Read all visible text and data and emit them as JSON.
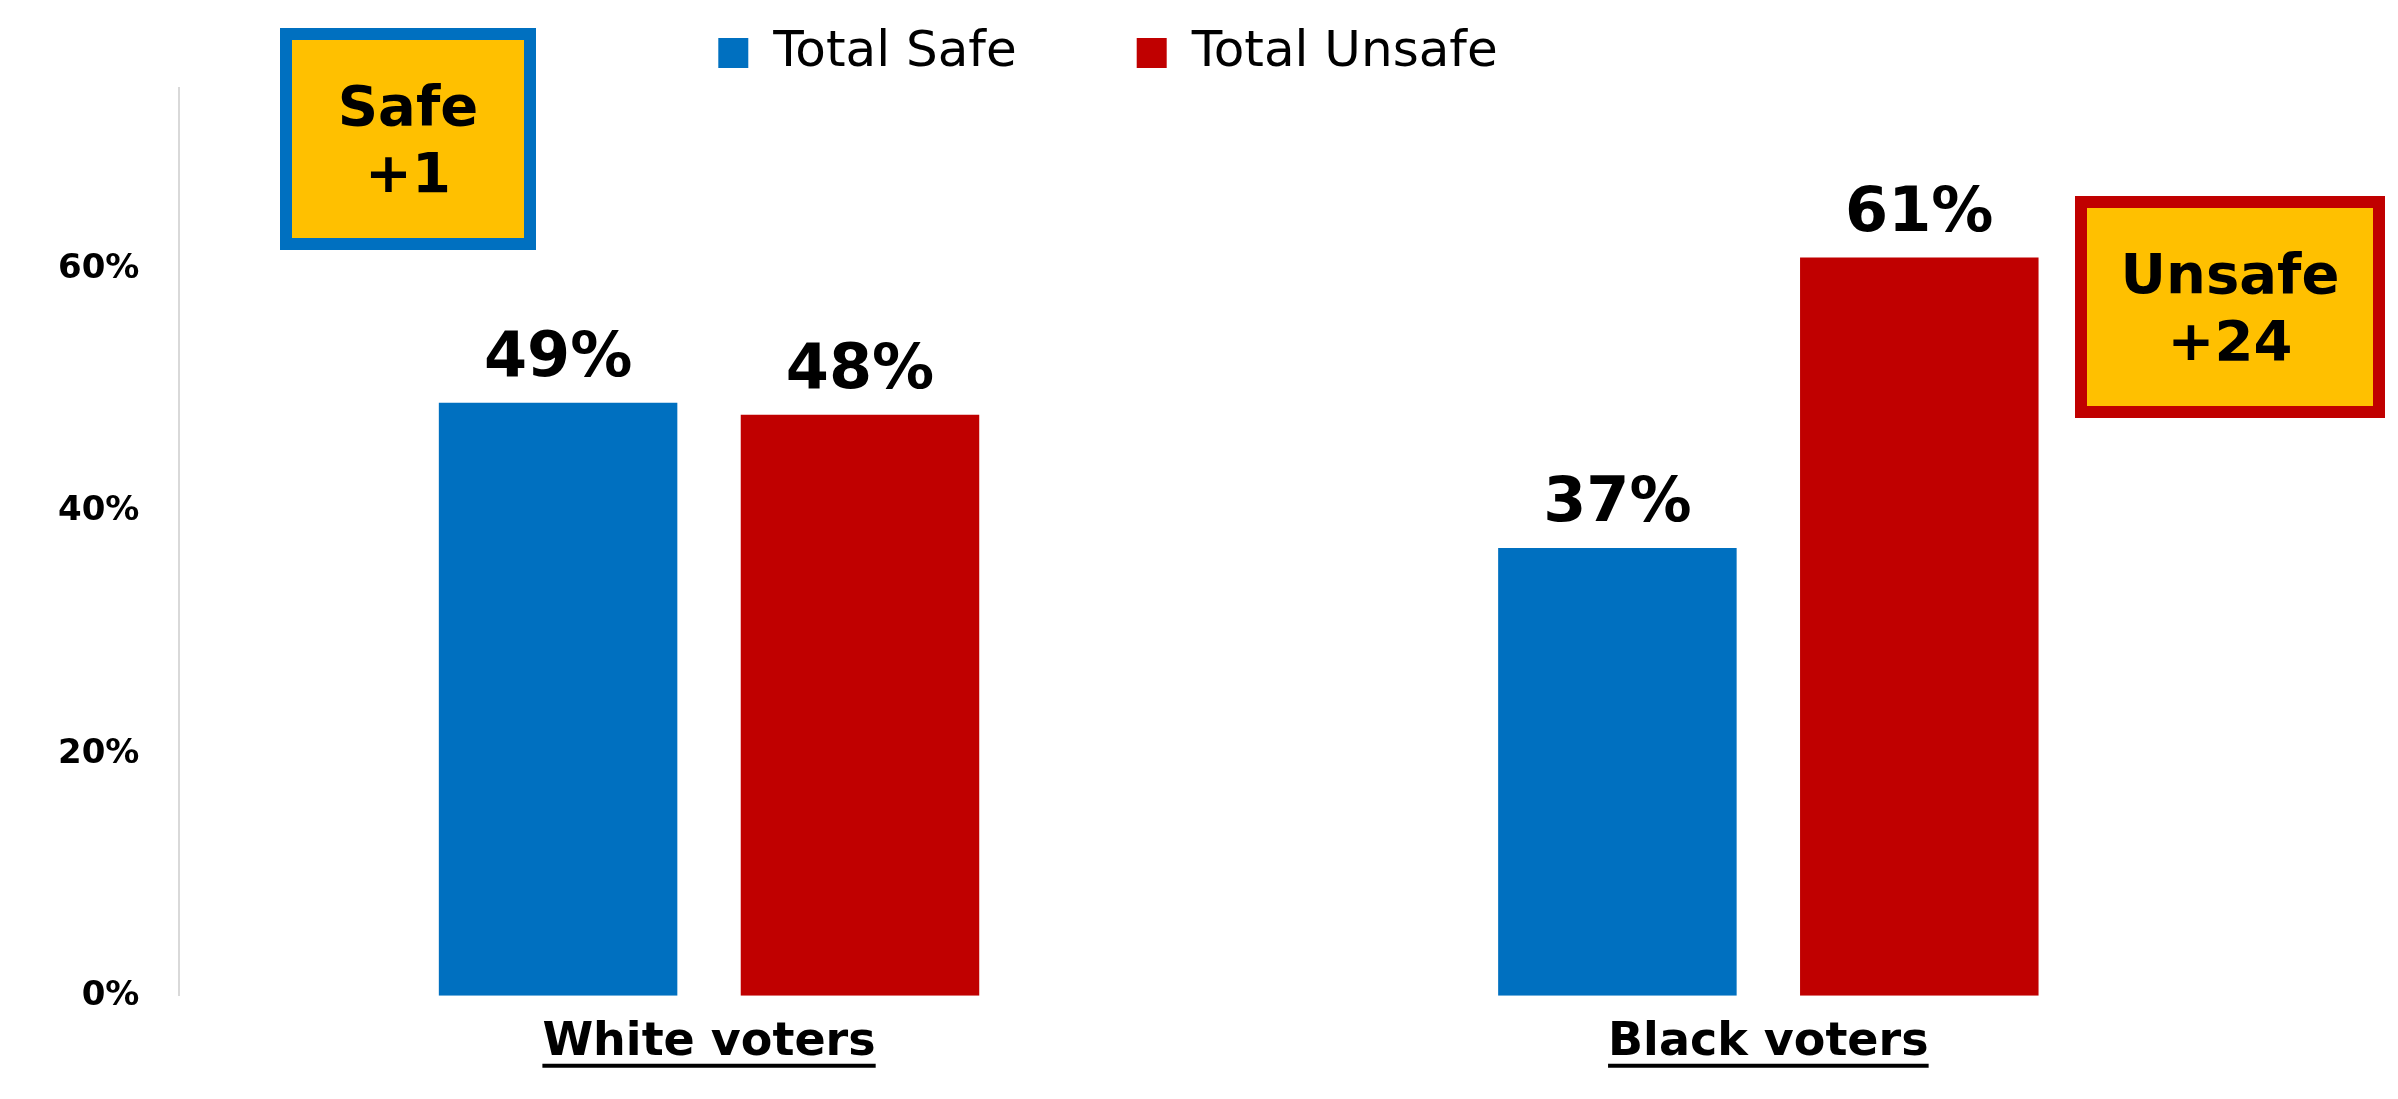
{
  "chart_data": {
    "type": "bar",
    "categories": [
      "White voters",
      "Black voters"
    ],
    "series": [
      {
        "name": "Total Safe",
        "color": "#0070c0",
        "values": [
          49,
          37
        ],
        "value_labels": [
          "49%",
          "37%"
        ]
      },
      {
        "name": "Total Unsafe",
        "color": "#c00000",
        "values": [
          48,
          61
        ],
        "value_labels": [
          "48%",
          "61%"
        ]
      }
    ],
    "ylim": [
      0,
      75
    ],
    "yticks": [
      {
        "value": 0,
        "label": "0%"
      },
      {
        "value": 20,
        "label": "20%"
      },
      {
        "value": 40,
        "label": "40%"
      },
      {
        "value": 60,
        "label": "60%"
      }
    ],
    "grid": false,
    "legend": "top",
    "annotations": [
      "Safe +1",
      "Unsafe +24"
    ]
  }
}
